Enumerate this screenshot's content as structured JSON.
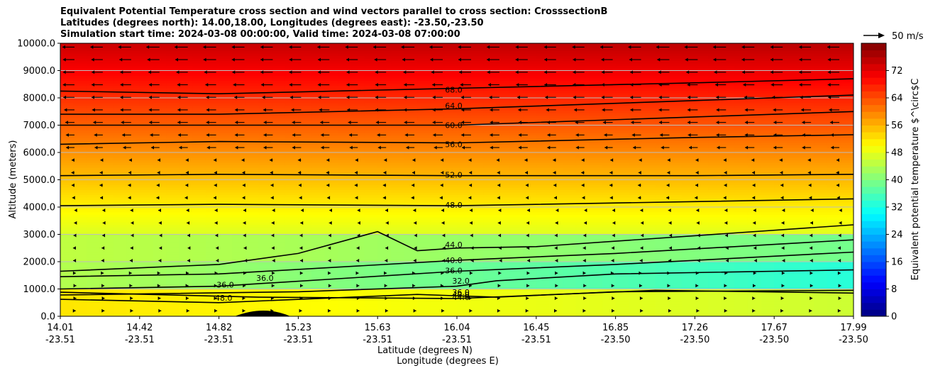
{
  "chart_data": {
    "type": "contour",
    "title_lines": [
      "Equivalent Potential Temperature cross section and wind vectors parallel to cross section: CrosssectionB",
      "Latitudes (degrees north): 14.00,18.00, Longitudes (degrees east): -23.50,-23.50",
      "Simulation start time: 2024-03-08 00:00:00, Valid time: 2024-03-08 07:00:00"
    ],
    "ylabel": "Altitude (meters)",
    "xlabel_lat": "Latitude (degrees N)",
    "xlabel_lon": "Longitude (degrees E)",
    "ylim": [
      0,
      10000
    ],
    "y_ticks": [
      "0.0",
      "1000.0",
      "2000.0",
      "3000.0",
      "4000.0",
      "5000.0",
      "6000.0",
      "7000.0",
      "8000.0",
      "9000.0",
      "10000.0"
    ],
    "x_ticks_lat": [
      "14.01",
      "14.42",
      "14.82",
      "15.23",
      "15.63",
      "16.04",
      "16.45",
      "16.85",
      "17.26",
      "17.67",
      "17.99"
    ],
    "x_ticks_lon": [
      "-23.51",
      "-23.51",
      "-23.51",
      "-23.51",
      "-23.51",
      "-23.51",
      "-23.51",
      "-23.50",
      "-23.50",
      "-23.50",
      "-23.50"
    ],
    "colorbar_label": "Equivalent potential temperature $^\\circ$C",
    "colorbar_range": [
      0,
      80
    ],
    "colorbar_ticks": [
      "0",
      "8",
      "16",
      "24",
      "32",
      "40",
      "48",
      "56",
      "64",
      "72"
    ],
    "quiver_key_label": "50 m/s",
    "contour_labels": [
      "68.0",
      "64.0",
      "60.0",
      "56.0",
      "52.0",
      "48.0",
      "44.0",
      "40.0",
      "36.0",
      "32.0",
      "36.0",
      "40.0",
      "44.0",
      "48.0",
      "36.0",
      "36.0"
    ],
    "colormap": [
      "#00007f",
      "#0000ff",
      "#0080ff",
      "#00ffff",
      "#80ff80",
      "#ffff00",
      "#ff8000",
      "#ff0000",
      "#7f0000"
    ]
  }
}
